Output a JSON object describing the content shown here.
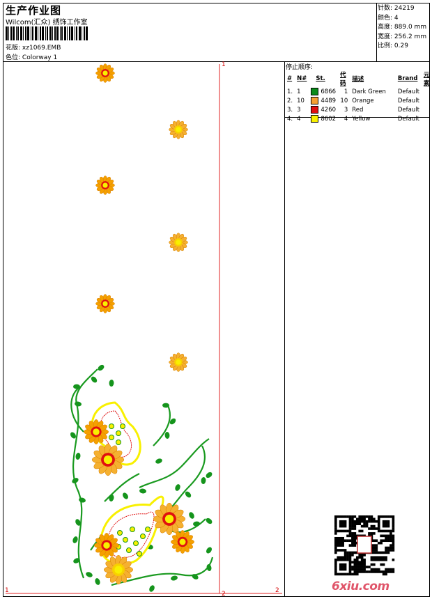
{
  "header": {
    "title": "生产作业图",
    "studio": "Wilcom(汇众) 绣饰工作室",
    "design_label": "花版:",
    "design_value": "xz1069.EMB",
    "colorway_label": "色位:",
    "colorway_value": "Colorway 1"
  },
  "stats": [
    {
      "label": "针数:",
      "value": "24219"
    },
    {
      "label": "颜色:",
      "value": "4"
    },
    {
      "label": "高度:",
      "value": "889.0 mm"
    },
    {
      "label": "宽度:",
      "value": "256.2 mm"
    },
    {
      "label": "比例:",
      "value": "0.29"
    }
  ],
  "stop_sequence": {
    "title": "停止顺序:",
    "columns": [
      "#",
      "N#",
      "St.",
      "代码",
      "描述",
      "Brand",
      "元素"
    ],
    "rows": [
      {
        "idx": "1.",
        "n": "1",
        "code": "6866",
        "st": "1",
        "desc": "Dark Green",
        "brand": "Default",
        "color": "#0a8a1a"
      },
      {
        "idx": "2.",
        "n": "10",
        "code": "4489",
        "st": "10",
        "desc": "Orange",
        "brand": "Default",
        "color": "#f5a033"
      },
      {
        "idx": "3.",
        "n": "3",
        "code": "4260",
        "st": "3",
        "desc": "Red",
        "brand": "Default",
        "color": "#e01010"
      },
      {
        "idx": "4.",
        "n": "4",
        "code": "8602",
        "st": "4",
        "desc": "Yellow",
        "brand": "Default",
        "color": "#f8f000"
      }
    ]
  },
  "markers": {
    "top_right": "1",
    "bottom_left": "1",
    "bottom_mid": "2",
    "bottom_right": "2"
  },
  "watermark": "6xiu.com"
}
